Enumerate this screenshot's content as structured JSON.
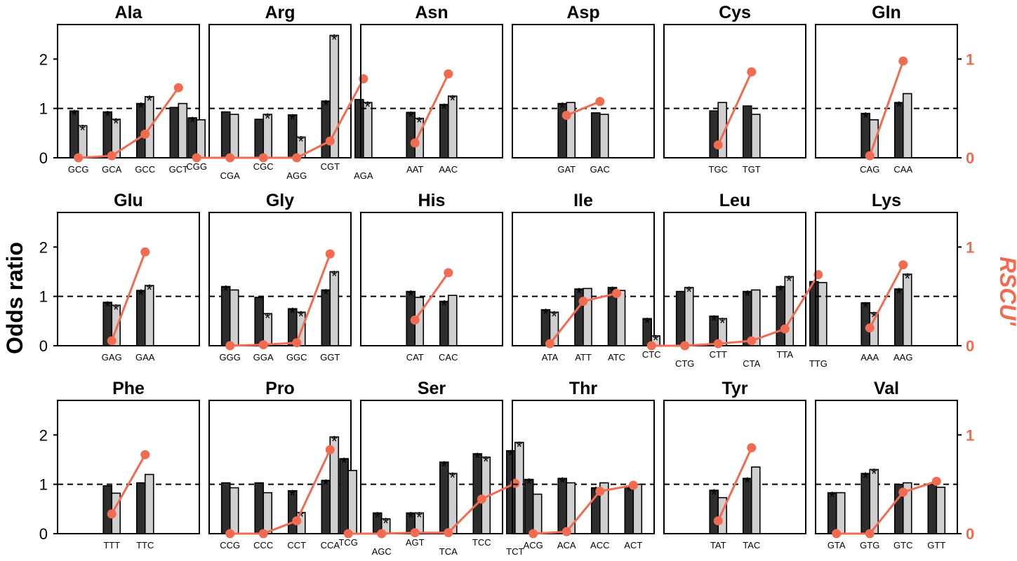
{
  "chart_data": {
    "type": "bar",
    "ylabel": "Odds ratio",
    "y2label": "RSCU'",
    "ylim": [
      0,
      2.7
    ],
    "y2lim": [
      0,
      1.35
    ],
    "yticks": [
      "0",
      "1",
      "2"
    ],
    "y2ticks": [
      "0",
      "1"
    ],
    "reference_line": 1,
    "colors": {
      "dark_bar": "#2d2d2d",
      "light_bar": "#cfcfcf",
      "rscu_line": "#f26b50"
    },
    "panels": [
      {
        "title": "Ala",
        "codons": [
          "GCG",
          "GCA",
          "GCC",
          "GCT"
        ],
        "dark": [
          0.95,
          0.93,
          1.1,
          1.02
        ],
        "light": [
          0.65,
          0.78,
          1.24,
          1.1
        ],
        "rscu": [
          0,
          0.02,
          0.24,
          0.71
        ],
        "dark_sig": [
          true,
          true,
          true,
          false
        ],
        "light_sig": [
          true,
          true,
          true,
          false
        ]
      },
      {
        "title": "Arg",
        "codons": [
          "CGG",
          "CGA",
          "CGC",
          "AGG",
          "CGT",
          "AGA"
        ],
        "dark": [
          0.81,
          0.93,
          0.78,
          0.87,
          1.15,
          1.18
        ],
        "light": [
          0.77,
          0.88,
          0.88,
          0.42,
          2.48,
          1.12
        ],
        "rscu": [
          0,
          0,
          0,
          0,
          0.17,
          0.8
        ],
        "dark_sig": [
          true,
          false,
          false,
          true,
          true,
          false
        ],
        "light_sig": [
          false,
          false,
          true,
          true,
          true,
          true
        ]
      },
      {
        "title": "Asn",
        "codons": [
          "AAT",
          "AAC"
        ],
        "dark": [
          0.92,
          1.08
        ],
        "light": [
          0.8,
          1.25
        ],
        "rscu": [
          0.15,
          0.85
        ],
        "dark_sig": [
          true,
          true
        ],
        "light_sig": [
          true,
          true
        ]
      },
      {
        "title": "Asp",
        "codons": [
          "GAT",
          "GAC"
        ],
        "dark": [
          1.1,
          0.91
        ],
        "light": [
          1.12,
          0.88
        ],
        "rscu": [
          0.43,
          0.57
        ],
        "dark_sig": [
          true,
          false
        ],
        "light_sig": [
          false,
          false
        ]
      },
      {
        "title": "Cys",
        "codons": [
          "TGC",
          "TGT"
        ],
        "dark": [
          0.95,
          1.05
        ],
        "light": [
          1.12,
          0.88
        ],
        "rscu": [
          0.13,
          0.87
        ],
        "dark_sig": [
          false,
          false
        ],
        "light_sig": [
          false,
          false
        ]
      },
      {
        "title": "Gln",
        "codons": [
          "CAG",
          "CAA"
        ],
        "dark": [
          0.9,
          1.12
        ],
        "light": [
          0.77,
          1.3
        ],
        "rscu": [
          0.02,
          0.98
        ],
        "dark_sig": [
          true,
          true
        ],
        "light_sig": [
          false,
          false
        ]
      },
      {
        "title": "Glu",
        "codons": [
          "GAG",
          "GAA"
        ],
        "dark": [
          0.88,
          1.12
        ],
        "light": [
          0.82,
          1.22
        ],
        "rscu": [
          0.05,
          0.95
        ],
        "dark_sig": [
          true,
          true
        ],
        "light_sig": [
          true,
          true
        ]
      },
      {
        "title": "Gly",
        "codons": [
          "GGG",
          "GGA",
          "GGC",
          "GGT"
        ],
        "dark": [
          1.2,
          0.98,
          0.75,
          1.13
        ],
        "light": [
          1.13,
          0.65,
          0.68,
          1.5
        ],
        "rscu": [
          0,
          0.01,
          0.03,
          0.93
        ],
        "dark_sig": [
          true,
          false,
          true,
          true
        ],
        "light_sig": [
          false,
          true,
          true,
          true
        ]
      },
      {
        "title": "His",
        "codons": [
          "CAT",
          "CAC"
        ],
        "dark": [
          1.1,
          0.9
        ],
        "light": [
          0.98,
          1.02
        ],
        "rscu": [
          0.26,
          0.74
        ],
        "dark_sig": [
          true,
          true
        ],
        "light_sig": [
          false,
          false
        ]
      },
      {
        "title": "Ile",
        "codons": [
          "ATA",
          "ATT",
          "ATC"
        ],
        "dark": [
          0.73,
          1.15,
          1.18
        ],
        "light": [
          0.68,
          1.16,
          1.12
        ],
        "rscu": [
          0.02,
          0.45,
          0.53
        ],
        "dark_sig": [
          true,
          true,
          true
        ],
        "light_sig": [
          true,
          false,
          false
        ]
      },
      {
        "title": "Leu",
        "codons": [
          "CTC",
          "CTG",
          "CTT",
          "CTA",
          "TTA",
          "TTG"
        ],
        "dark": [
          0.55,
          1.1,
          0.6,
          1.1,
          1.2,
          1.3
        ],
        "light": [
          0.2,
          1.18,
          0.55,
          1.13,
          1.4,
          1.28
        ],
        "rscu": [
          0,
          0,
          0.02,
          0.05,
          0.17,
          0.72
        ],
        "dark_sig": [
          true,
          false,
          true,
          true,
          true,
          true
        ],
        "light_sig": [
          true,
          true,
          true,
          false,
          true,
          false
        ]
      },
      {
        "title": "Lys",
        "codons": [
          "AAA",
          "AAG"
        ],
        "dark": [
          0.87,
          1.15
        ],
        "light": [
          0.67,
          1.45
        ],
        "rscu": [
          0.18,
          0.82
        ],
        "dark_sig": [
          true,
          true
        ],
        "light_sig": [
          true,
          true
        ]
      },
      {
        "title": "Phe",
        "codons": [
          "TTT",
          "TTC"
        ],
        "dark": [
          0.97,
          1.03
        ],
        "light": [
          0.82,
          1.2
        ],
        "rscu": [
          0.2,
          0.8
        ],
        "dark_sig": [
          false,
          false
        ],
        "light_sig": [
          false,
          false
        ]
      },
      {
        "title": "Pro",
        "codons": [
          "CCG",
          "CCC",
          "CCT",
          "CCA"
        ],
        "dark": [
          1.03,
          1.03,
          0.87,
          1.08
        ],
        "light": [
          0.93,
          0.83,
          0.43,
          1.96
        ],
        "rscu": [
          0,
          0,
          0.13,
          0.85
        ],
        "dark_sig": [
          false,
          false,
          true,
          true
        ],
        "light_sig": [
          false,
          false,
          true,
          true
        ]
      },
      {
        "title": "Ser",
        "codons": [
          "TCG",
          "AGC",
          "AGT",
          "TCA",
          "TCC",
          "TCT"
        ],
        "dark": [
          1.52,
          0.42,
          0.42,
          1.45,
          1.62,
          1.68
        ],
        "light": [
          1.28,
          0.3,
          0.42,
          1.22,
          1.55,
          1.85
        ],
        "rscu": [
          0,
          0,
          0.01,
          0.01,
          0.35,
          0.51
        ],
        "dark_sig": [
          true,
          true,
          true,
          true,
          true,
          true
        ],
        "light_sig": [
          false,
          true,
          true,
          true,
          true,
          true
        ]
      },
      {
        "title": "Thr",
        "codons": [
          "ACG",
          "ACA",
          "ACC",
          "ACT"
        ],
        "dark": [
          1.1,
          1.12,
          0.93,
          0.95
        ],
        "light": [
          0.8,
          1.03,
          1.03,
          1.0
        ],
        "rscu": [
          0,
          0.02,
          0.43,
          0.49
        ],
        "dark_sig": [
          true,
          true,
          true,
          true
        ],
        "light_sig": [
          false,
          false,
          false,
          false
        ]
      },
      {
        "title": "Tyr",
        "codons": [
          "TAT",
          "TAC"
        ],
        "dark": [
          0.88,
          1.12
        ],
        "light": [
          0.73,
          1.35
        ],
        "rscu": [
          0.13,
          0.87
        ],
        "dark_sig": [
          true,
          true
        ],
        "light_sig": [
          false,
          false
        ]
      },
      {
        "title": "Val",
        "codons": [
          "GTA",
          "GTG",
          "GTC",
          "GTT"
        ],
        "dark": [
          0.83,
          1.22,
          1.0,
          1.0
        ],
        "light": [
          0.83,
          1.3,
          1.03,
          0.94
        ],
        "rscu": [
          0,
          0,
          0.42,
          0.53
        ],
        "dark_sig": [
          true,
          true,
          false,
          false
        ],
        "light_sig": [
          false,
          true,
          false,
          false
        ]
      }
    ]
  }
}
